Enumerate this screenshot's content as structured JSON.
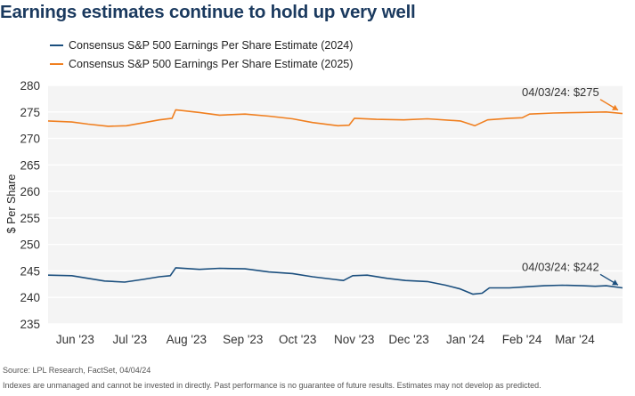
{
  "title": "Earnings estimates continue to hold up very well",
  "legend": [
    {
      "label": "Consensus S&P 500 Earnings Per Share Estimate (2024)",
      "color": "#1b4f7e"
    },
    {
      "label": "Consensus S&P 500 Earnings Per Share Estimate (2025)",
      "color": "#f07f1f"
    }
  ],
  "source": "Source: LPL Research, FactSet, 04/04/24",
  "disclaimer": "Indexes are unmanaged and cannot be invested in directly. Past performance is no guarantee of future results. Estimates may not develop as predicted.",
  "chart_data": {
    "type": "line",
    "title": "Earnings estimates continue to hold up very well",
    "ylabel": "$ Per Share",
    "xlabel": "",
    "ylim": [
      235,
      280
    ],
    "yticks": [
      235,
      240,
      245,
      250,
      255,
      260,
      265,
      270,
      275,
      280
    ],
    "xlim": [
      "2023-05-24",
      "2024-04-03"
    ],
    "xticks": [
      {
        "label": "Jun '23",
        "date": "2023-06-01"
      },
      {
        "label": "Jul '23",
        "date": "2023-07-01"
      },
      {
        "label": "Aug '23",
        "date": "2023-08-01"
      },
      {
        "label": "Sep '23",
        "date": "2023-09-01"
      },
      {
        "label": "Oct '23",
        "date": "2023-10-01"
      },
      {
        "label": "Nov '23",
        "date": "2023-11-01"
      },
      {
        "label": "Dec '23",
        "date": "2023-12-01"
      },
      {
        "label": "Jan '24",
        "date": "2024-01-01"
      },
      {
        "label": "Feb '24",
        "date": "2024-02-01"
      },
      {
        "label": "Mar '24",
        "date": "2024-03-01"
      }
    ],
    "grid": "horizontal",
    "legend_position": "top-left",
    "series": [
      {
        "name": "Consensus S&P 500 Earnings Per Share Estimate (2024)",
        "color": "#1b4f7e",
        "points": [
          [
            "2023-05-24",
            244.2
          ],
          [
            "2023-06-06",
            244.1
          ],
          [
            "2023-06-15",
            243.6
          ],
          [
            "2023-06-24",
            243.1
          ],
          [
            "2023-07-05",
            242.9
          ],
          [
            "2023-07-15",
            243.4
          ],
          [
            "2023-07-24",
            243.9
          ],
          [
            "2023-07-30",
            244.1
          ],
          [
            "2023-08-02",
            245.6
          ],
          [
            "2023-08-15",
            245.3
          ],
          [
            "2023-08-26",
            245.5
          ],
          [
            "2023-09-09",
            245.4
          ],
          [
            "2023-09-22",
            244.8
          ],
          [
            "2023-10-05",
            244.5
          ],
          [
            "2023-10-16",
            243.9
          ],
          [
            "2023-10-28",
            243.4
          ],
          [
            "2023-11-02",
            243.2
          ],
          [
            "2023-11-07",
            244.1
          ],
          [
            "2023-11-15",
            244.2
          ],
          [
            "2023-11-26",
            243.6
          ],
          [
            "2023-12-06",
            243.2
          ],
          [
            "2023-12-18",
            243.0
          ],
          [
            "2023-12-28",
            242.3
          ],
          [
            "2024-01-05",
            241.6
          ],
          [
            "2024-01-12",
            240.6
          ],
          [
            "2024-01-17",
            240.8
          ],
          [
            "2024-01-21",
            241.8
          ],
          [
            "2024-02-01",
            241.8
          ],
          [
            "2024-02-10",
            242.0
          ],
          [
            "2024-02-20",
            242.2
          ],
          [
            "2024-03-01",
            242.3
          ],
          [
            "2024-03-12",
            242.2
          ],
          [
            "2024-03-19",
            242.1
          ],
          [
            "2024-03-25",
            242.2
          ],
          [
            "2024-04-03",
            241.8
          ]
        ]
      },
      {
        "name": "Consensus S&P 500 Earnings Per Share Estimate (2025)",
        "color": "#f07f1f",
        "points": [
          [
            "2023-05-24",
            273.3
          ],
          [
            "2023-06-06",
            273.1
          ],
          [
            "2023-06-15",
            272.7
          ],
          [
            "2023-06-26",
            272.3
          ],
          [
            "2023-07-06",
            272.4
          ],
          [
            "2023-07-16",
            273.0
          ],
          [
            "2023-07-24",
            273.5
          ],
          [
            "2023-07-31",
            273.8
          ],
          [
            "2023-08-02",
            275.4
          ],
          [
            "2023-08-15",
            274.9
          ],
          [
            "2023-08-26",
            274.4
          ],
          [
            "2023-09-09",
            274.6
          ],
          [
            "2023-09-22",
            274.2
          ],
          [
            "2023-10-05",
            273.7
          ],
          [
            "2023-10-16",
            273.0
          ],
          [
            "2023-10-30",
            272.4
          ],
          [
            "2023-11-05",
            272.5
          ],
          [
            "2023-11-08",
            273.8
          ],
          [
            "2023-11-20",
            273.6
          ],
          [
            "2023-12-05",
            273.5
          ],
          [
            "2023-12-18",
            273.7
          ],
          [
            "2024-01-05",
            273.3
          ],
          [
            "2024-01-13",
            272.4
          ],
          [
            "2024-01-20",
            273.5
          ],
          [
            "2024-02-01",
            273.8
          ],
          [
            "2024-02-08",
            273.9
          ],
          [
            "2024-02-12",
            274.6
          ],
          [
            "2024-02-25",
            274.8
          ],
          [
            "2024-03-10",
            274.9
          ],
          [
            "2024-03-25",
            275.0
          ],
          [
            "2024-04-03",
            274.7
          ]
        ]
      }
    ],
    "annotations": [
      {
        "text": "04/03/24: $275",
        "series": 1,
        "date": "2024-04-03",
        "value": 275,
        "color": "#f07f1f"
      },
      {
        "text": "04/03/24: $242",
        "series": 0,
        "date": "2024-04-03",
        "value": 242,
        "color": "#1b4f7e"
      }
    ]
  }
}
